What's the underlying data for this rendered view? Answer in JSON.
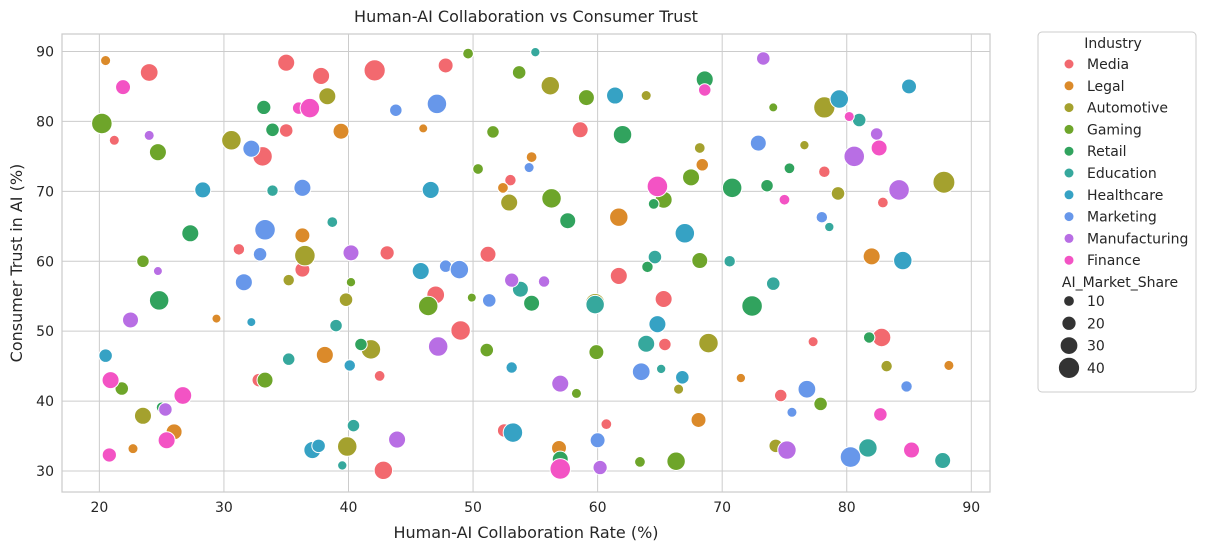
{
  "chart_data": {
    "type": "scatter",
    "title": "Human-AI Collaboration vs Consumer Trust",
    "xlabel": "Human-AI Collaboration Rate (%)",
    "ylabel": "Consumer Trust in AI (%)",
    "xlim": [
      17,
      91.5
    ],
    "ylim": [
      27,
      92.5
    ],
    "xticks": [
      20,
      30,
      40,
      50,
      60,
      70,
      80,
      90
    ],
    "yticks": [
      30,
      40,
      50,
      60,
      70,
      80,
      90
    ],
    "grid": true,
    "legend_placement": "outside upper right",
    "hue_title": "Industry",
    "size_title": "AI_Market_Share",
    "size_legend": [
      10,
      20,
      30,
      40
    ],
    "size_range": [
      5,
      45
    ],
    "series": [
      {
        "name": "Media",
        "color": "#f2696f",
        "points": [
          {
            "x": 20.5,
            "y": 88.5,
            "s": 6
          },
          {
            "x": 21.2,
            "y": 77.3,
            "s": 8
          },
          {
            "x": 24.0,
            "y": 87.0,
            "s": 30
          },
          {
            "x": 31.2,
            "y": 61.7,
            "s": 12
          },
          {
            "x": 32.8,
            "y": 43.0,
            "s": 18
          },
          {
            "x": 33.1,
            "y": 75.0,
            "s": 35
          },
          {
            "x": 35.0,
            "y": 88.4,
            "s": 28
          },
          {
            "x": 35.0,
            "y": 78.7,
            "s": 18
          },
          {
            "x": 36.3,
            "y": 58.8,
            "s": 22
          },
          {
            "x": 37.8,
            "y": 86.5,
            "s": 28
          },
          {
            "x": 42.1,
            "y": 87.3,
            "s": 40
          },
          {
            "x": 42.5,
            "y": 43.6,
            "s": 10
          },
          {
            "x": 42.8,
            "y": 30.1,
            "s": 32
          },
          {
            "x": 43.1,
            "y": 61.2,
            "s": 20
          },
          {
            "x": 47.0,
            "y": 55.2,
            "s": 30
          },
          {
            "x": 47.8,
            "y": 88.0,
            "s": 22
          },
          {
            "x": 49.0,
            "y": 50.1,
            "s": 35
          },
          {
            "x": 51.2,
            "y": 61.0,
            "s": 25
          },
          {
            "x": 52.5,
            "y": 35.8,
            "s": 18
          },
          {
            "x": 53.0,
            "y": 71.6,
            "s": 12
          },
          {
            "x": 58.6,
            "y": 78.8,
            "s": 25
          },
          {
            "x": 60.7,
            "y": 36.7,
            "s": 10
          },
          {
            "x": 61.7,
            "y": 57.9,
            "s": 28
          },
          {
            "x": 65.3,
            "y": 54.6,
            "s": 28
          },
          {
            "x": 65.4,
            "y": 48.1,
            "s": 15
          },
          {
            "x": 74.7,
            "y": 40.8,
            "s": 15
          },
          {
            "x": 77.3,
            "y": 48.5,
            "s": 8
          },
          {
            "x": 78.2,
            "y": 72.8,
            "s": 12
          },
          {
            "x": 82.8,
            "y": 49.1,
            "s": 32
          },
          {
            "x": 82.9,
            "y": 68.4,
            "s": 10
          }
        ]
      },
      {
        "name": "Legal",
        "color": "#db8a2a",
        "points": [
          {
            "x": 20.5,
            "y": 88.7,
            "s": 8
          },
          {
            "x": 22.7,
            "y": 33.2,
            "s": 8
          },
          {
            "x": 26.0,
            "y": 35.6,
            "s": 25
          },
          {
            "x": 29.4,
            "y": 51.8,
            "s": 5
          },
          {
            "x": 36.3,
            "y": 63.7,
            "s": 22
          },
          {
            "x": 38.1,
            "y": 46.6,
            "s": 28
          },
          {
            "x": 39.4,
            "y": 78.6,
            "s": 25
          },
          {
            "x": 46.0,
            "y": 79.0,
            "s": 5
          },
          {
            "x": 52.4,
            "y": 70.5,
            "s": 10
          },
          {
            "x": 54.7,
            "y": 74.9,
            "s": 10
          },
          {
            "x": 56.9,
            "y": 33.3,
            "s": 22
          },
          {
            "x": 61.7,
            "y": 66.3,
            "s": 32
          },
          {
            "x": 68.1,
            "y": 37.3,
            "s": 22
          },
          {
            "x": 68.4,
            "y": 73.8,
            "s": 15
          },
          {
            "x": 71.5,
            "y": 43.3,
            "s": 6
          },
          {
            "x": 82.0,
            "y": 60.7,
            "s": 28
          },
          {
            "x": 88.2,
            "y": 45.1,
            "s": 8
          }
        ]
      },
      {
        "name": "Automotive",
        "color": "#a4a12e",
        "points": [
          {
            "x": 23.5,
            "y": 37.9,
            "s": 28
          },
          {
            "x": 30.6,
            "y": 77.3,
            "s": 35
          },
          {
            "x": 35.2,
            "y": 57.3,
            "s": 12
          },
          {
            "x": 36.5,
            "y": 60.8,
            "s": 38
          },
          {
            "x": 38.3,
            "y": 83.6,
            "s": 28
          },
          {
            "x": 39.8,
            "y": 54.5,
            "s": 18
          },
          {
            "x": 39.9,
            "y": 33.5,
            "s": 35
          },
          {
            "x": 41.8,
            "y": 47.4,
            "s": 35
          },
          {
            "x": 52.9,
            "y": 68.4,
            "s": 28
          },
          {
            "x": 56.2,
            "y": 85.1,
            "s": 32
          },
          {
            "x": 59.8,
            "y": 54.0,
            "s": 35
          },
          {
            "x": 63.9,
            "y": 83.7,
            "s": 8
          },
          {
            "x": 66.5,
            "y": 41.7,
            "s": 8
          },
          {
            "x": 68.2,
            "y": 76.2,
            "s": 10
          },
          {
            "x": 68.9,
            "y": 48.3,
            "s": 35
          },
          {
            "x": 74.3,
            "y": 33.6,
            "s": 18
          },
          {
            "x": 76.6,
            "y": 76.6,
            "s": 6
          },
          {
            "x": 78.2,
            "y": 82.0,
            "s": 40
          },
          {
            "x": 79.3,
            "y": 69.7,
            "s": 18
          },
          {
            "x": 83.2,
            "y": 45.0,
            "s": 12
          },
          {
            "x": 87.8,
            "y": 71.3,
            "s": 42
          }
        ]
      },
      {
        "name": "Gaming",
        "color": "#6ea52a",
        "points": [
          {
            "x": 20.2,
            "y": 79.7,
            "s": 38
          },
          {
            "x": 21.8,
            "y": 41.8,
            "s": 18
          },
          {
            "x": 23.5,
            "y": 60.0,
            "s": 15
          },
          {
            "x": 24.7,
            "y": 75.6,
            "s": 28
          },
          {
            "x": 33.3,
            "y": 43.0,
            "s": 25
          },
          {
            "x": 40.2,
            "y": 57.0,
            "s": 6
          },
          {
            "x": 46.4,
            "y": 53.6,
            "s": 35
          },
          {
            "x": 49.6,
            "y": 89.7,
            "s": 10
          },
          {
            "x": 49.9,
            "y": 54.8,
            "s": 5
          },
          {
            "x": 50.4,
            "y": 73.2,
            "s": 10
          },
          {
            "x": 51.1,
            "y": 47.3,
            "s": 18
          },
          {
            "x": 51.6,
            "y": 78.5,
            "s": 15
          },
          {
            "x": 53.7,
            "y": 87.0,
            "s": 18
          },
          {
            "x": 56.3,
            "y": 69.0,
            "s": 35
          },
          {
            "x": 58.3,
            "y": 41.1,
            "s": 8
          },
          {
            "x": 59.1,
            "y": 83.4,
            "s": 25
          },
          {
            "x": 59.9,
            "y": 47.0,
            "s": 22
          },
          {
            "x": 63.4,
            "y": 31.3,
            "s": 10
          },
          {
            "x": 65.3,
            "y": 68.8,
            "s": 28
          },
          {
            "x": 66.3,
            "y": 31.4,
            "s": 32
          },
          {
            "x": 67.5,
            "y": 72.0,
            "s": 28
          },
          {
            "x": 68.2,
            "y": 60.1,
            "s": 25
          },
          {
            "x": 74.1,
            "y": 82.0,
            "s": 5
          },
          {
            "x": 77.9,
            "y": 39.6,
            "s": 18
          }
        ]
      },
      {
        "name": "Retail",
        "color": "#31a35e",
        "points": [
          {
            "x": 24.8,
            "y": 54.4,
            "s": 35
          },
          {
            "x": 25.0,
            "y": 39.1,
            "s": 10
          },
          {
            "x": 27.3,
            "y": 64.0,
            "s": 28
          },
          {
            "x": 33.2,
            "y": 82.0,
            "s": 20
          },
          {
            "x": 33.9,
            "y": 78.8,
            "s": 18
          },
          {
            "x": 41.0,
            "y": 48.1,
            "s": 15
          },
          {
            "x": 54.7,
            "y": 54.0,
            "s": 25
          },
          {
            "x": 57.0,
            "y": 31.7,
            "s": 25
          },
          {
            "x": 57.6,
            "y": 65.8,
            "s": 25
          },
          {
            "x": 62.0,
            "y": 78.1,
            "s": 32
          },
          {
            "x": 64.0,
            "y": 59.2,
            "s": 12
          },
          {
            "x": 64.5,
            "y": 68.2,
            "s": 10
          },
          {
            "x": 68.6,
            "y": 86.0,
            "s": 28
          },
          {
            "x": 70.8,
            "y": 70.5,
            "s": 35
          },
          {
            "x": 72.4,
            "y": 53.6,
            "s": 38
          },
          {
            "x": 73.0,
            "y": 76.6,
            "s": 15
          },
          {
            "x": 73.6,
            "y": 70.8,
            "s": 15
          },
          {
            "x": 75.4,
            "y": 73.3,
            "s": 10
          },
          {
            "x": 81.8,
            "y": 49.1,
            "s": 12
          }
        ]
      },
      {
        "name": "Education",
        "color": "#36a89d",
        "points": [
          {
            "x": 33.9,
            "y": 70.1,
            "s": 12
          },
          {
            "x": 35.2,
            "y": 46.0,
            "s": 15
          },
          {
            "x": 38.7,
            "y": 65.6,
            "s": 10
          },
          {
            "x": 39.0,
            "y": 50.8,
            "s": 15
          },
          {
            "x": 39.5,
            "y": 30.8,
            "s": 6
          },
          {
            "x": 40.4,
            "y": 36.5,
            "s": 15
          },
          {
            "x": 53.8,
            "y": 56.0,
            "s": 25
          },
          {
            "x": 55.0,
            "y": 89.9,
            "s": 6
          },
          {
            "x": 59.8,
            "y": 53.8,
            "s": 32
          },
          {
            "x": 63.9,
            "y": 48.2,
            "s": 28
          },
          {
            "x": 64.6,
            "y": 60.6,
            "s": 18
          },
          {
            "x": 65.1,
            "y": 44.6,
            "s": 6
          },
          {
            "x": 70.6,
            "y": 60.0,
            "s": 12
          },
          {
            "x": 74.1,
            "y": 56.8,
            "s": 18
          },
          {
            "x": 78.6,
            "y": 64.9,
            "s": 6
          },
          {
            "x": 81.0,
            "y": 80.2,
            "s": 18
          },
          {
            "x": 81.7,
            "y": 33.3,
            "s": 32
          },
          {
            "x": 87.7,
            "y": 31.5,
            "s": 25
          }
        ]
      },
      {
        "name": "Healthcare",
        "color": "#36a2c4",
        "points": [
          {
            "x": 20.5,
            "y": 46.5,
            "s": 18
          },
          {
            "x": 28.3,
            "y": 70.2,
            "s": 25
          },
          {
            "x": 32.2,
            "y": 51.3,
            "s": 5
          },
          {
            "x": 37.1,
            "y": 33.0,
            "s": 28
          },
          {
            "x": 37.6,
            "y": 33.6,
            "s": 18
          },
          {
            "x": 40.1,
            "y": 45.1,
            "s": 12
          },
          {
            "x": 45.8,
            "y": 58.6,
            "s": 28
          },
          {
            "x": 46.6,
            "y": 70.2,
            "s": 28
          },
          {
            "x": 53.1,
            "y": 44.8,
            "s": 12
          },
          {
            "x": 53.2,
            "y": 35.5,
            "s": 35
          },
          {
            "x": 61.4,
            "y": 83.7,
            "s": 28
          },
          {
            "x": 64.8,
            "y": 51.0,
            "s": 28
          },
          {
            "x": 66.8,
            "y": 43.4,
            "s": 18
          },
          {
            "x": 67.0,
            "y": 64.0,
            "s": 35
          },
          {
            "x": 79.4,
            "y": 83.2,
            "s": 32
          },
          {
            "x": 84.5,
            "y": 60.1,
            "s": 32
          },
          {
            "x": 85.0,
            "y": 85.0,
            "s": 22
          }
        ]
      },
      {
        "name": "Marketing",
        "color": "#6797ea",
        "points": [
          {
            "x": 31.6,
            "y": 57.0,
            "s": 28
          },
          {
            "x": 32.2,
            "y": 76.1,
            "s": 28
          },
          {
            "x": 32.9,
            "y": 61.0,
            "s": 18
          },
          {
            "x": 33.3,
            "y": 64.5,
            "s": 38
          },
          {
            "x": 36.3,
            "y": 70.5,
            "s": 28
          },
          {
            "x": 43.8,
            "y": 81.6,
            "s": 15
          },
          {
            "x": 47.1,
            "y": 82.5,
            "s": 35
          },
          {
            "x": 47.8,
            "y": 59.3,
            "s": 15
          },
          {
            "x": 48.9,
            "y": 58.8,
            "s": 32
          },
          {
            "x": 51.3,
            "y": 54.4,
            "s": 18
          },
          {
            "x": 54.5,
            "y": 73.4,
            "s": 8
          },
          {
            "x": 60.0,
            "y": 34.4,
            "s": 22
          },
          {
            "x": 63.5,
            "y": 44.2,
            "s": 30
          },
          {
            "x": 72.9,
            "y": 76.9,
            "s": 25
          },
          {
            "x": 75.6,
            "y": 38.4,
            "s": 8
          },
          {
            "x": 76.8,
            "y": 41.7,
            "s": 30
          },
          {
            "x": 78.0,
            "y": 66.3,
            "s": 12
          },
          {
            "x": 80.3,
            "y": 32.0,
            "s": 38
          },
          {
            "x": 84.8,
            "y": 42.1,
            "s": 12
          }
        ]
      },
      {
        "name": "Manufacturing",
        "color": "#b86ee4",
        "points": [
          {
            "x": 22.5,
            "y": 51.6,
            "s": 25
          },
          {
            "x": 24.0,
            "y": 78.0,
            "s": 8
          },
          {
            "x": 24.7,
            "y": 58.6,
            "s": 5
          },
          {
            "x": 25.3,
            "y": 38.8,
            "s": 18
          },
          {
            "x": 40.2,
            "y": 61.2,
            "s": 25
          },
          {
            "x": 43.9,
            "y": 34.5,
            "s": 28
          },
          {
            "x": 47.2,
            "y": 47.8,
            "s": 35
          },
          {
            "x": 53.1,
            "y": 57.3,
            "s": 20
          },
          {
            "x": 55.7,
            "y": 57.1,
            "s": 12
          },
          {
            "x": 57.0,
            "y": 42.5,
            "s": 28
          },
          {
            "x": 60.2,
            "y": 30.5,
            "s": 20
          },
          {
            "x": 73.3,
            "y": 89.0,
            "s": 18
          },
          {
            "x": 75.2,
            "y": 33.0,
            "s": 32
          },
          {
            "x": 80.6,
            "y": 75.0,
            "s": 38
          },
          {
            "x": 82.4,
            "y": 78.2,
            "s": 15
          },
          {
            "x": 84.2,
            "y": 70.2,
            "s": 38
          }
        ]
      },
      {
        "name": "Finance",
        "color": "#f353c4",
        "points": [
          {
            "x": 20.8,
            "y": 32.3,
            "s": 20
          },
          {
            "x": 20.9,
            "y": 43.0,
            "s": 28
          },
          {
            "x": 21.9,
            "y": 84.9,
            "s": 22
          },
          {
            "x": 25.4,
            "y": 34.4,
            "s": 28
          },
          {
            "x": 26.7,
            "y": 40.8,
            "s": 30
          },
          {
            "x": 36.0,
            "y": 81.9,
            "s": 15
          },
          {
            "x": 36.9,
            "y": 81.9,
            "s": 35
          },
          {
            "x": 57.0,
            "y": 30.3,
            "s": 38
          },
          {
            "x": 64.8,
            "y": 70.7,
            "s": 38
          },
          {
            "x": 68.6,
            "y": 84.5,
            "s": 15
          },
          {
            "x": 75.0,
            "y": 68.8,
            "s": 10
          },
          {
            "x": 80.2,
            "y": 80.7,
            "s": 8
          },
          {
            "x": 82.6,
            "y": 76.2,
            "s": 25
          },
          {
            "x": 82.7,
            "y": 38.1,
            "s": 18
          },
          {
            "x": 85.2,
            "y": 33.0,
            "s": 25
          }
        ]
      }
    ]
  }
}
